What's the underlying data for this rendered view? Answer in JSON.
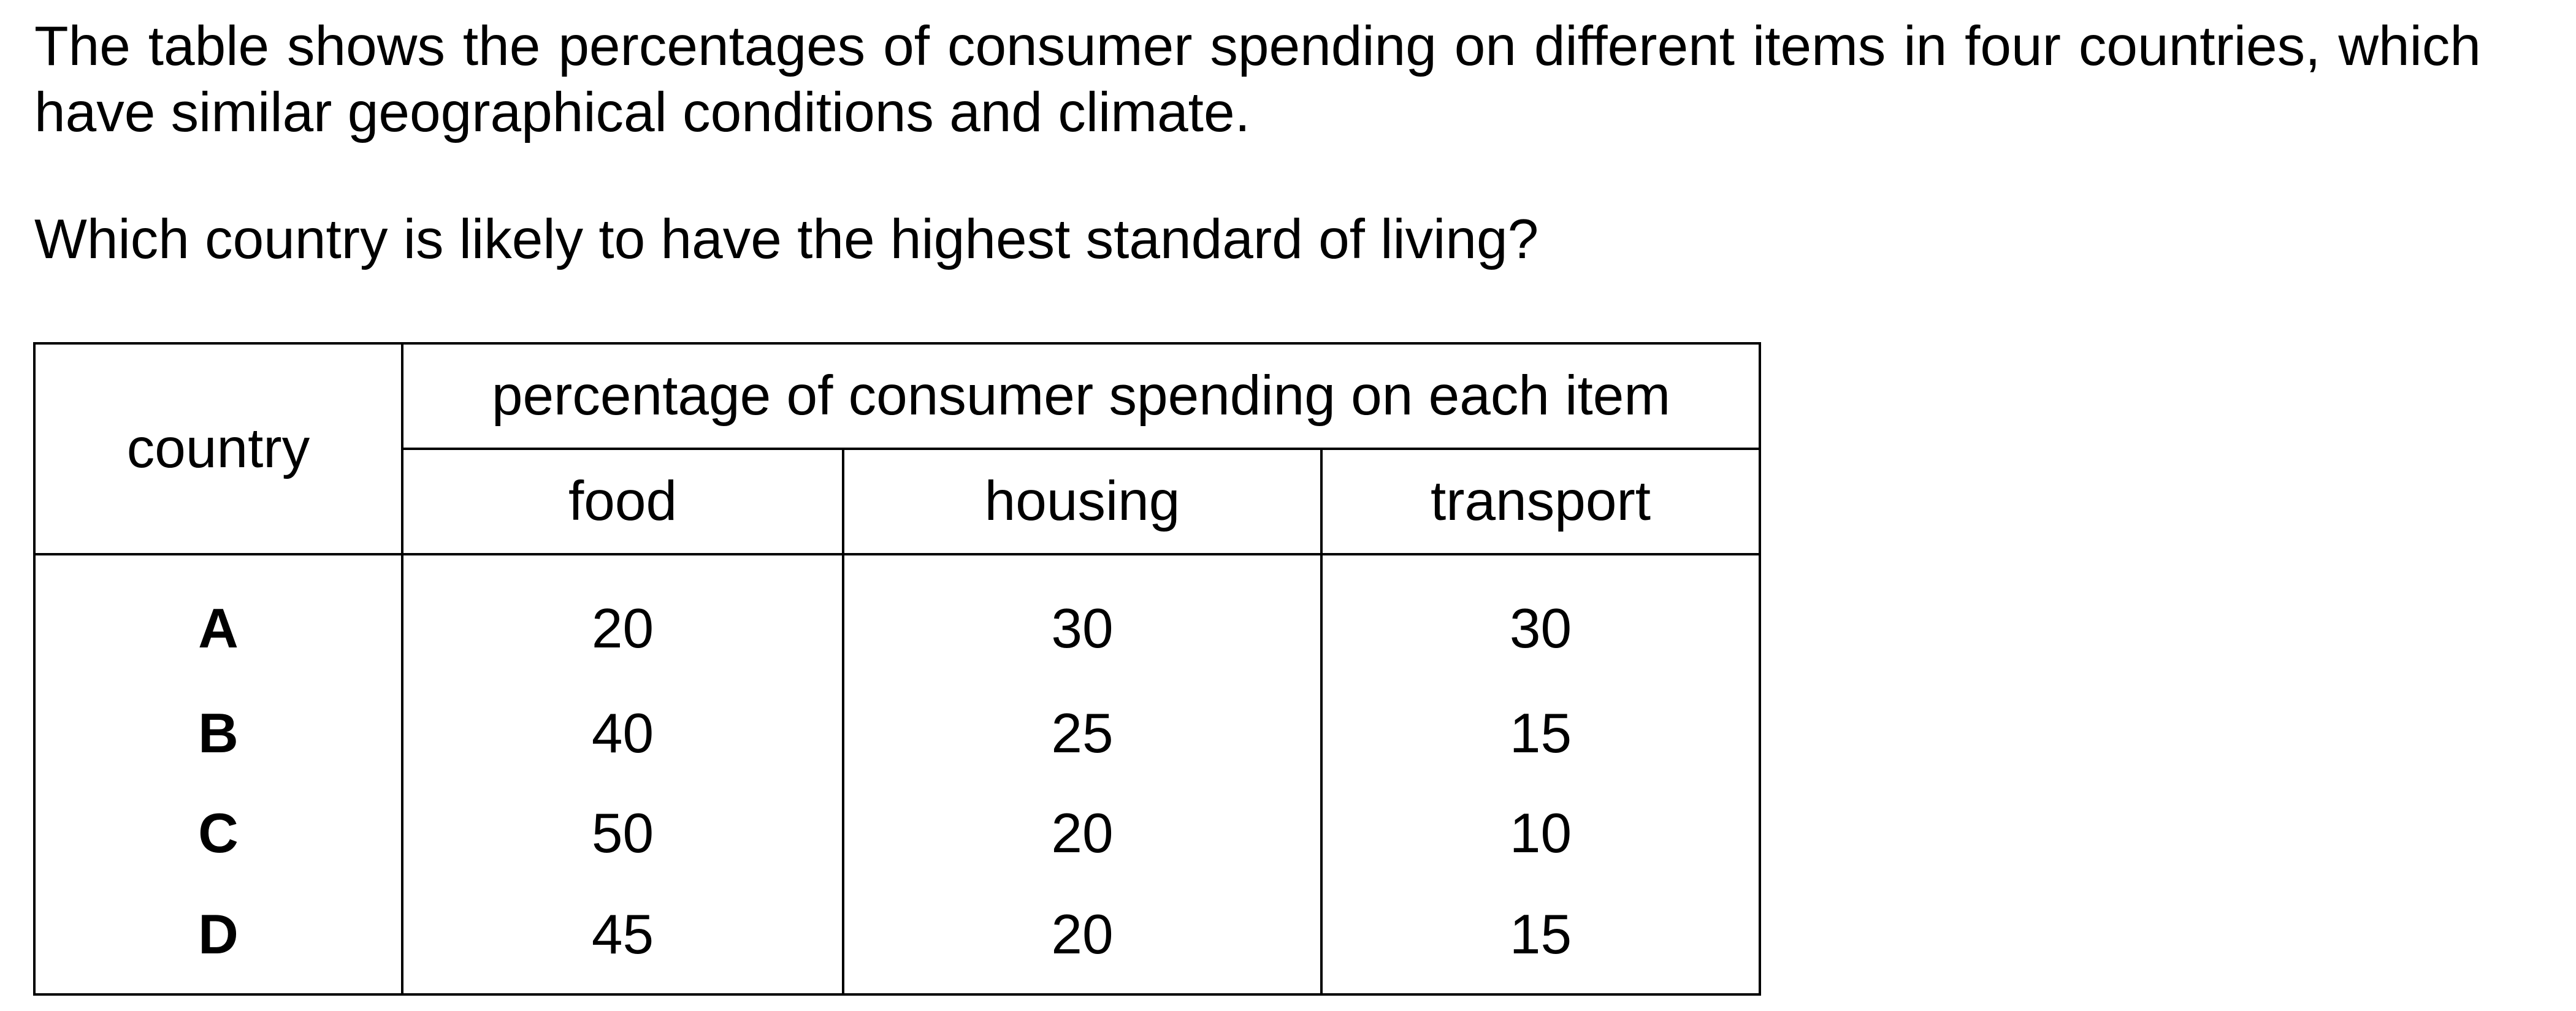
{
  "question": {
    "intro": "The table shows the percentages of consumer spending on different items in four countries, which have similar geographical conditions and climate.",
    "prompt": "Which country is likely to have the highest standard of living?"
  },
  "table": {
    "country_header": "country",
    "group_header": "percentage of consumer spending on each item",
    "columns": [
      "food",
      "housing",
      "transport"
    ],
    "rows": [
      {
        "country": "A",
        "food": "20",
        "housing": "30",
        "transport": "30"
      },
      {
        "country": "B",
        "food": "40",
        "housing": "25",
        "transport": "15"
      },
      {
        "country": "C",
        "food": "50",
        "housing": "20",
        "transport": "10"
      },
      {
        "country": "D",
        "food": "45",
        "housing": "20",
        "transport": "15"
      }
    ]
  }
}
